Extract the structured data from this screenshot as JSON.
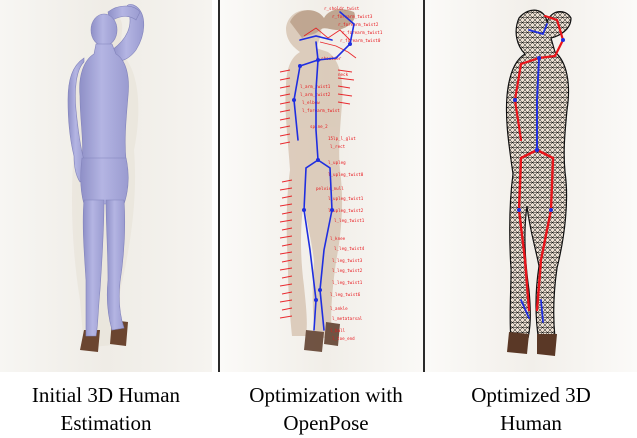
{
  "panels": [
    {
      "name": "initial-estimation",
      "caption_lines": [
        "Initial 3D Human",
        "Estimation"
      ],
      "body_color": "#a9aadb"
    },
    {
      "name": "openpose-optimization",
      "caption_lines": [
        "Optimization with",
        "OpenPose"
      ],
      "label_color": "#e8141a",
      "skeleton_color": "#1f2ee0"
    },
    {
      "name": "optimized-human",
      "caption_lines": [
        "Optimized 3D",
        "Human"
      ],
      "mesh_color": "#111111",
      "skeleton_red": "#e8141a",
      "skeleton_blue": "#1f2ee0"
    }
  ]
}
